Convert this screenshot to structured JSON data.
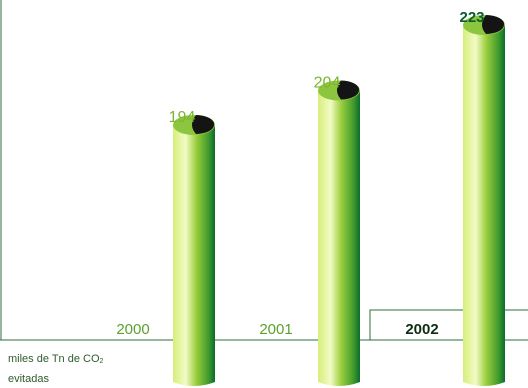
{
  "chart_data": {
    "type": "bar",
    "categories": [
      "2000",
      "2001",
      "2002"
    ],
    "values": [
      194,
      204,
      223
    ],
    "highlight_category": "2002",
    "unit_label": {
      "prefix": "miles de Tn de CO",
      "subscript": "2",
      "suffix": "evitadas"
    },
    "colors": {
      "bar_light": "#e8f5a8",
      "bar_mid": "#8cc63f",
      "bar_dark": "#0b6b2e",
      "label_normal": "#7ab62e",
      "label_highlight": "#0b5c2a",
      "year_normal": "#5aa02c",
      "year_highlight": "#0e2e14",
      "frame_line": "#2f6f3a"
    }
  }
}
